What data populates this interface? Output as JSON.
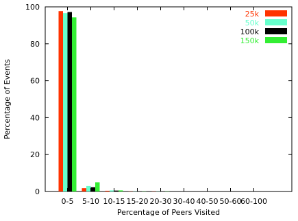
{
  "chart_data": {
    "type": "bar",
    "title": "",
    "xlabel": "Percentage of Peers Visited",
    "ylabel": "Percentage of Events",
    "ylim": [
      0,
      100
    ],
    "yticks": [
      0,
      20,
      40,
      60,
      80,
      100
    ],
    "categories": [
      "0-5",
      "5-10",
      "10-15",
      "15-20",
      "20-30",
      "30-40",
      "40-50",
      "50-60",
      "60-100"
    ],
    "series": [
      {
        "name": "25k",
        "color": "#ff3300",
        "values": [
          97.7,
          1.8,
          0.4,
          0.1,
          0.1,
          0.0,
          0.0,
          0.0,
          0.0
        ]
      },
      {
        "name": "50k",
        "color": "#66ffcc",
        "values": [
          96.6,
          3.0,
          0.6,
          0.1,
          0.1,
          0.0,
          0.0,
          0.0,
          0.0
        ]
      },
      {
        "name": "100k",
        "color": "#000000",
        "values": [
          97.2,
          2.3,
          0.5,
          0.1,
          0.1,
          0.0,
          0.0,
          0.0,
          0.0
        ]
      },
      {
        "name": "150k",
        "color": "#33ee33",
        "values": [
          94.3,
          5.0,
          0.6,
          0.1,
          0.1,
          0.0,
          0.0,
          0.0,
          0.0
        ]
      }
    ],
    "legend_position": "top-right",
    "grid": false
  }
}
